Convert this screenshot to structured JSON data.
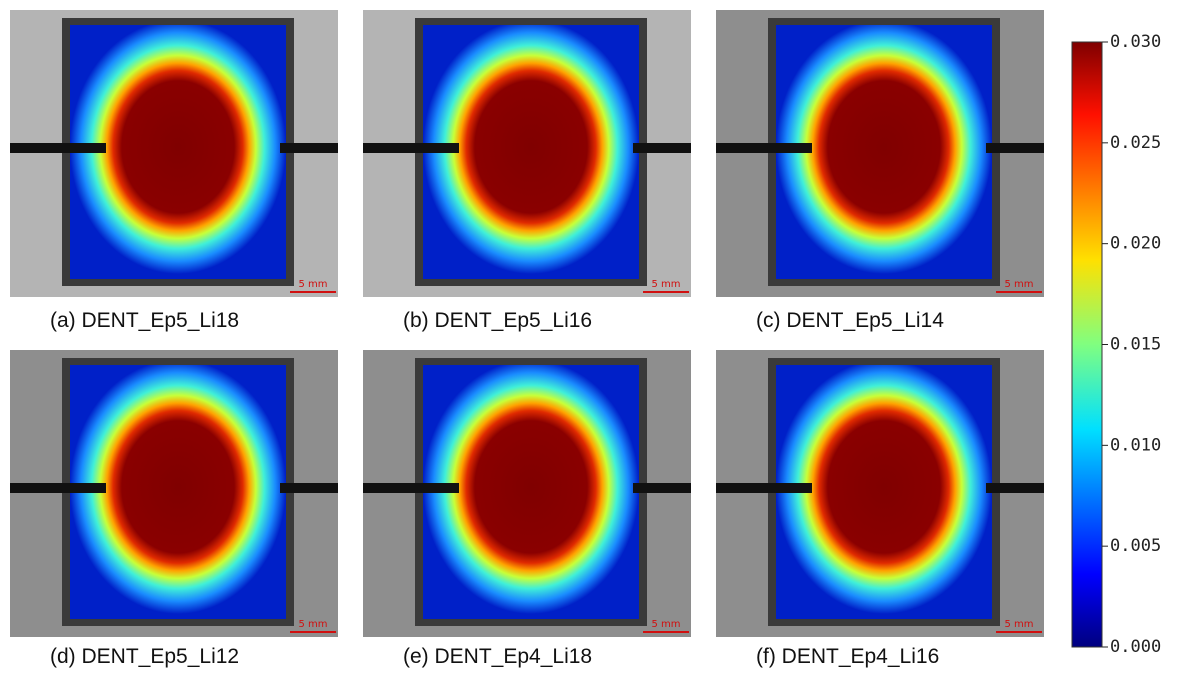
{
  "panels": [
    {
      "caption": "(a) DENT_Ep5_Li18",
      "scale_label": "5 mm"
    },
    {
      "caption": "(b) DENT_Ep5_Li16",
      "scale_label": "5 mm"
    },
    {
      "caption": "(c) DENT_Ep5_Li14",
      "scale_label": "5 mm"
    },
    {
      "caption": "(d) DENT_Ep5_Li12",
      "scale_label": "5 mm"
    },
    {
      "caption": "(e) DENT_Ep4_Li18",
      "scale_label": "5 mm"
    },
    {
      "caption": "(f) DENT_Ep4_Li16",
      "scale_label": "5 mm"
    }
  ],
  "colorbar": {
    "lim": [
      0,
      0.03
    ],
    "ticks": [
      {
        "value": 0,
        "label": "0.000"
      },
      {
        "value": 0.005,
        "label": "0.005"
      },
      {
        "value": 0.01,
        "label": "0.010"
      },
      {
        "value": 0.015,
        "label": "0.015"
      },
      {
        "value": 0.02,
        "label": "0.020"
      },
      {
        "value": 0.025,
        "label": "0.025"
      },
      {
        "value": 0.03,
        "label": "0.030"
      }
    ]
  }
}
